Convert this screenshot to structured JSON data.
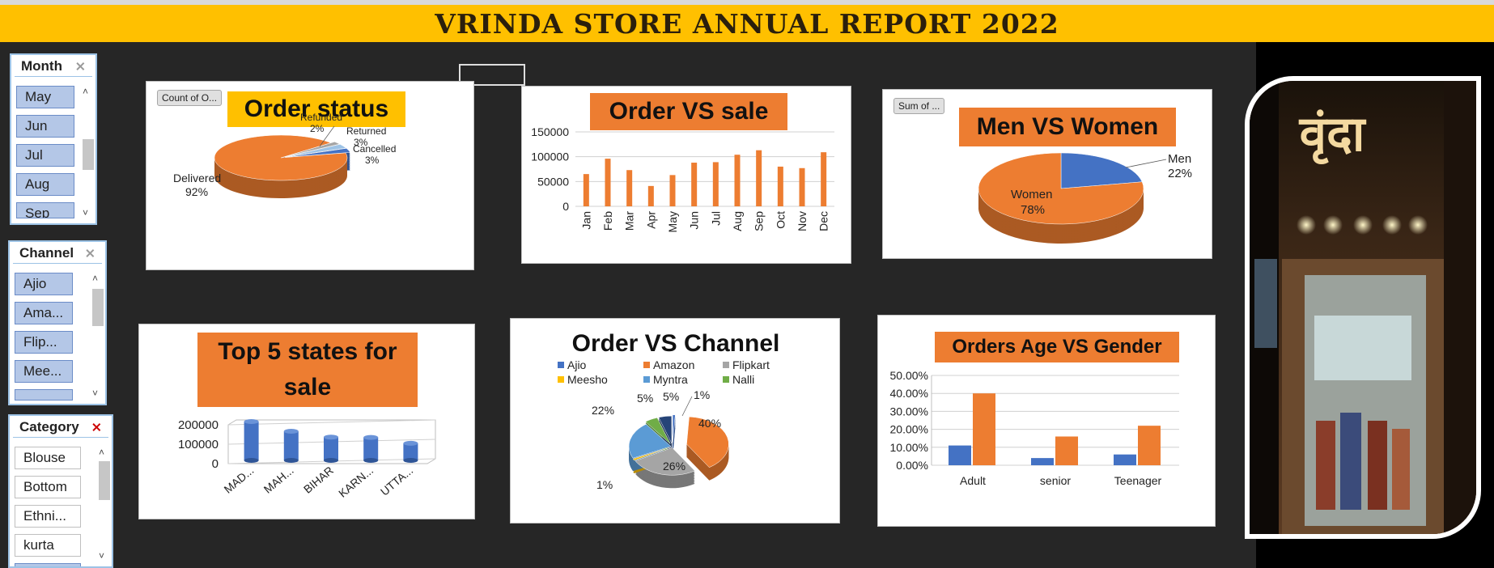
{
  "report_title": "Vrinda Store Annual Report 2022",
  "slicers": {
    "month": {
      "title": "Month",
      "items": [
        "May",
        "Jun",
        "Jul",
        "Aug",
        "Sep"
      ]
    },
    "channel": {
      "title": "Channel",
      "items": [
        "Ajio",
        "Ama...",
        "Flip...",
        "Mee...",
        ""
      ]
    },
    "category": {
      "title": "Category",
      "items": [
        "Blouse",
        "Bottom",
        "Ethni...",
        "kurta",
        ""
      ]
    }
  },
  "filter_buttons": {
    "order_status": "Count of O...",
    "men_women": "Sum of ..."
  },
  "chart_data": [
    {
      "id": "order_status",
      "type": "pie",
      "title": "Order status",
      "slices": [
        {
          "label": "Delivered",
          "value": 92,
          "pct": "92%",
          "color": "#ed7d31"
        },
        {
          "label": "Refunded",
          "value": 2,
          "pct": "2%",
          "color": "#a5a5a5"
        },
        {
          "label": "Returned",
          "value": 3,
          "pct": "3%",
          "color": "#9dc3e6"
        },
        {
          "label": "Cancelled",
          "value": 3,
          "pct": "3%",
          "color": "#4472c4"
        }
      ]
    },
    {
      "id": "order_vs_sale",
      "type": "bar",
      "title": "Order VS sale",
      "categories": [
        "Jan",
        "Feb",
        "Mar",
        "Apr",
        "May",
        "Jun",
        "Jul",
        "Aug",
        "Sep",
        "Oct",
        "Nov",
        "Dec"
      ],
      "values": [
        65000,
        96000,
        73000,
        41000,
        63000,
        88000,
        89000,
        104000,
        113000,
        80000,
        77000,
        109000
      ],
      "ylim": [
        0,
        150000
      ],
      "yticks": [
        "0",
        "50000",
        "100000",
        "150000"
      ],
      "color": "#ed7d31"
    },
    {
      "id": "men_vs_women",
      "type": "pie",
      "title": "Men VS Women",
      "slices": [
        {
          "label": "Men",
          "value": 22,
          "pct": "22%",
          "color": "#4472c4"
        },
        {
          "label": "Women",
          "value": 78,
          "pct": "78%",
          "color": "#ed7d31"
        }
      ]
    },
    {
      "id": "top5_states",
      "type": "bar",
      "title": "Top 5 states for sale",
      "categories": [
        "MAD...",
        "MAH...",
        "BIHAR",
        "KARN...",
        "UTTA..."
      ],
      "values": [
        205000,
        150000,
        120000,
        118000,
        88000
      ],
      "ylim": [
        0,
        200000
      ],
      "yticks": [
        "0",
        "100000",
        "200000"
      ],
      "color": "#4472c4"
    },
    {
      "id": "order_vs_channel",
      "type": "pie",
      "title": "Order VS Channel",
      "legend": [
        "Ajio",
        "Amazon",
        "Flipkart",
        "Meesho",
        "Myntra",
        "Nalli"
      ],
      "slices": [
        {
          "label": "Ajio",
          "value": 1,
          "pct": "1%",
          "color": "#4472c4"
        },
        {
          "label": "Amazon",
          "value": 40,
          "pct": "40%",
          "color": "#ed7d31"
        },
        {
          "label": "Flipkart",
          "value": 26,
          "pct": "26%",
          "color": "#a5a5a5"
        },
        {
          "label": "Meesho",
          "value": 1,
          "pct": "1%",
          "color": "#ffc000"
        },
        {
          "label": "Myntra",
          "value": 22,
          "pct": "22%",
          "color": "#5b9bd5"
        },
        {
          "label": "Nalli",
          "value": 5,
          "pct": "5%",
          "color": "#70ad47"
        },
        {
          "label": "",
          "value": 5,
          "pct": "5%",
          "color": "#264478"
        }
      ]
    },
    {
      "id": "age_vs_gender",
      "type": "bar",
      "title": "Orders Age VS Gender",
      "categories": [
        "Adult",
        "senior",
        "Teenager"
      ],
      "series": [
        {
          "values": [
            11,
            4,
            6
          ],
          "color": "#4472c4"
        },
        {
          "values": [
            40,
            16,
            22
          ],
          "color": "#ed7d31"
        }
      ],
      "ylim": [
        0,
        50
      ],
      "yticks": [
        "0.00%",
        "10.00%",
        "20.00%",
        "30.00%",
        "40.00%",
        "50.00%"
      ]
    }
  ],
  "store_sign": "वृंदा"
}
